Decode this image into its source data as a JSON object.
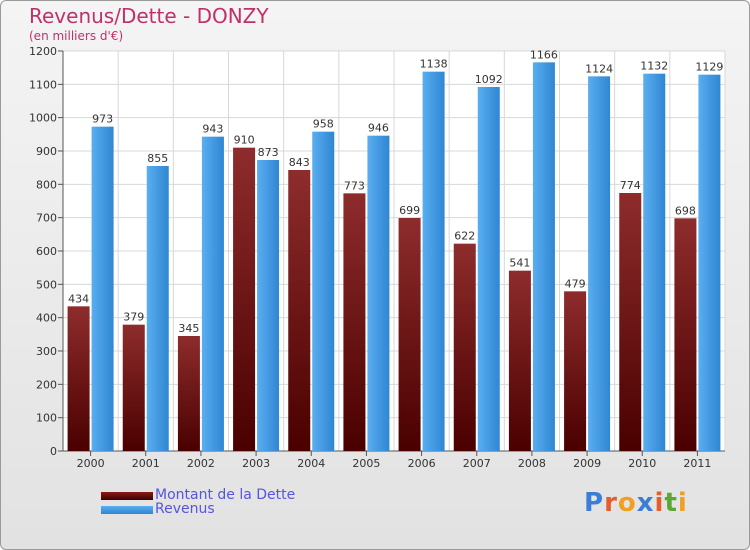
{
  "header": {
    "title": "Revenus/Dette - DONZY",
    "subtitle": "(en milliers d'€)"
  },
  "legend": {
    "items": [
      {
        "label": "Montant de la Dette",
        "color": "#6b0a0a"
      },
      {
        "label": "Revenus",
        "color": "#3a8fdc"
      }
    ]
  },
  "brand": {
    "text": "Proxiti",
    "letters": [
      "P",
      "r",
      "o",
      "x",
      "i",
      "t",
      "i"
    ],
    "colors": [
      "#3a7fd5",
      "#e85c2a",
      "#f0a020",
      "#3a7fd5",
      "#e85c2a",
      "#5aa832",
      "#f0a020"
    ]
  },
  "chart_data": {
    "type": "bar",
    "categories": [
      "2000",
      "2001",
      "2002",
      "2003",
      "2004",
      "2005",
      "2006",
      "2007",
      "2008",
      "2009",
      "2010",
      "2011"
    ],
    "series": [
      {
        "name": "Montant de la Dette",
        "values": [
          434,
          379,
          345,
          910,
          843,
          773,
          699,
          622,
          541,
          479,
          774,
          698
        ],
        "color": "#7a1a1a"
      },
      {
        "name": "Revenus",
        "values": [
          973,
          855,
          943,
          873,
          958,
          946,
          1138,
          1092,
          1166,
          1124,
          1132,
          1129
        ],
        "color": "#3d97e0"
      }
    ],
    "ylim": [
      0,
      1200
    ],
    "yticks": [
      0,
      100,
      200,
      300,
      400,
      500,
      600,
      700,
      800,
      900,
      1000,
      1100,
      1200
    ],
    "title": "Revenus/Dette - DONZY",
    "ylabel": "(en milliers d'€)",
    "xlabel": "",
    "grid": true,
    "legend_position": "bottom-left"
  }
}
